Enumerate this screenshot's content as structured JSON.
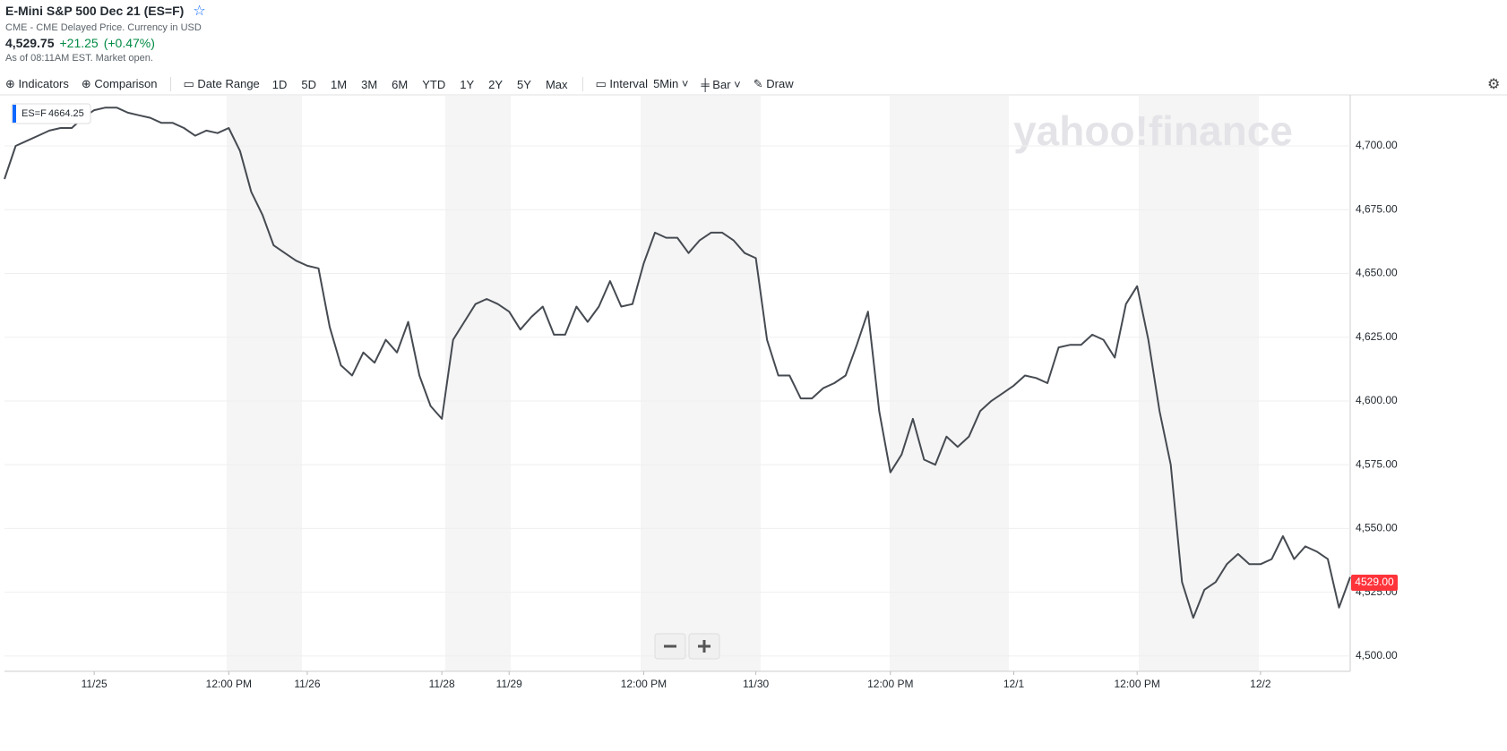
{
  "header": {
    "title": "E-Mini S&P 500 Dec 21 (ES=F)",
    "source": "CME - CME Delayed Price. Currency in USD",
    "price": "4,529.75",
    "change": "+21.25",
    "change_pct": "(+0.47%)",
    "as_of": "As of 08:11AM EST. Market open."
  },
  "toolbar": {
    "indicators": "Indicators",
    "comparison": "Comparison",
    "date_range": "Date Range",
    "ranges": [
      "1D",
      "5D",
      "1M",
      "3M",
      "6M",
      "YTD",
      "1Y",
      "2Y",
      "5Y",
      "Max"
    ],
    "interval": "Interval",
    "interval_value": "5Min",
    "chart_type": "Bar",
    "draw": "Draw"
  },
  "tooltip": {
    "symbol": "ES=F",
    "value": "4664.25"
  },
  "watermark": "yahoo!finance",
  "current_price_label": "4529.00",
  "chart_data": {
    "type": "line",
    "color": "#464b52",
    "categories": [
      null,
      null,
      null,
      null,
      null,
      null,
      null,
      null,
      "11/25",
      null,
      null,
      null,
      null,
      null,
      null,
      null,
      null,
      null,
      null,
      null,
      "12:00 PM",
      null,
      null,
      null,
      null,
      null,
      null,
      "11/26",
      null,
      null,
      null,
      null,
      null,
      null,
      null,
      null,
      null,
      null,
      null,
      "11/28",
      null,
      null,
      null,
      null,
      null,
      "11/29",
      null,
      null,
      null,
      null,
      null,
      null,
      null,
      null,
      null,
      null,
      null,
      "12:00 PM",
      null,
      null,
      null,
      null,
      null,
      null,
      null,
      null,
      null,
      "11/30",
      null,
      null,
      null,
      null,
      null,
      null,
      null,
      null,
      null,
      null,
      null,
      "12:00 PM",
      null,
      null,
      null,
      null,
      null,
      null,
      null,
      null,
      null,
      null,
      "12/1",
      null,
      null,
      null,
      null,
      null,
      null,
      null,
      null,
      null,
      null,
      "12:00 PM",
      null,
      null,
      null,
      null,
      null,
      null,
      null,
      null,
      null,
      null,
      "12/2",
      null,
      null,
      null,
      null,
      null,
      null,
      null,
      null
    ],
    "values": [
      4687,
      4700,
      4702,
      4704,
      4706,
      4707,
      4707,
      4711,
      4714,
      4715,
      4715,
      4713,
      4712,
      4711,
      4709,
      4709,
      4707,
      4704,
      4706,
      4705,
      4707,
      4698,
      4682,
      4673,
      4661,
      4658,
      4655,
      4653,
      4652,
      4629,
      4614,
      4610,
      4619,
      4615,
      4624,
      4619,
      4631,
      4610,
      4598,
      4593,
      4624,
      4631,
      4638,
      4640,
      4638,
      4635,
      4628,
      4633,
      4637,
      4626,
      4626,
      4637,
      4631,
      4637,
      4647,
      4637,
      4638,
      4654,
      4666,
      4664,
      4664,
      4658,
      4663,
      4666,
      4666,
      4663,
      4658,
      4656,
      4624,
      4610,
      4610,
      4601,
      4601,
      4605,
      4607,
      4610,
      4622,
      4635,
      4596,
      4572,
      4579,
      4593,
      4577,
      4575,
      4586,
      4582,
      4586,
      4596,
      4600,
      4603,
      4606,
      4610,
      4609,
      4607,
      4621,
      4622,
      4622,
      4626,
      4624,
      4617,
      4638,
      4645,
      4624,
      4596,
      4575,
      4529,
      4515,
      4526,
      4529,
      4536,
      4540,
      4536,
      4536,
      4538,
      4547,
      4538,
      4543,
      4541,
      4538,
      4519,
      4531
    ],
    "ylim": [
      4494,
      4720
    ],
    "yticks": [
      {
        "value": 4500,
        "label": "4,500.00"
      },
      {
        "value": 4525,
        "label": "4,525.00"
      },
      {
        "value": 4550,
        "label": "4,550.00"
      },
      {
        "value": 4575,
        "label": "4,575.00"
      },
      {
        "value": 4600,
        "label": "4,600.00"
      },
      {
        "value": 4625,
        "label": "4,625.00"
      },
      {
        "value": 4650,
        "label": "4,650.00"
      },
      {
        "value": 4675,
        "label": "4,675.00"
      },
      {
        "value": 4700,
        "label": "4,700.00"
      }
    ],
    "grid": true
  }
}
